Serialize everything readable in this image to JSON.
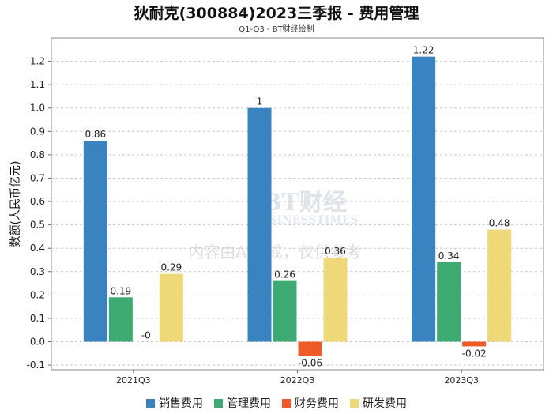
{
  "chart_data": {
    "type": "bar",
    "title": "狄耐克(300884)2023三季报 - 费用管理",
    "subtitle": "Q1-Q3 - BT财经绘制",
    "ylabel": "数额(人民币亿元)",
    "xlabel": "",
    "ylim": [
      -0.12,
      1.3
    ],
    "yticks": [
      -0.1,
      0.0,
      0.1,
      0.2,
      0.3,
      0.4,
      0.5,
      0.6,
      0.7,
      0.8,
      0.9,
      1.0,
      1.1,
      1.2
    ],
    "categories": [
      "2021Q3",
      "2022Q3",
      "2023Q3"
    ],
    "series": [
      {
        "name": "销售费用",
        "color": "#3a83c1",
        "values": [
          0.86,
          1.0,
          1.22
        ],
        "labels": [
          "0.86",
          "1",
          "1.22"
        ]
      },
      {
        "name": "管理费用",
        "color": "#3daa72",
        "values": [
          0.19,
          0.26,
          0.34
        ],
        "labels": [
          "0.19",
          "0.26",
          "0.34"
        ]
      },
      {
        "name": "财务费用",
        "color": "#ee5a28",
        "values": [
          0.0,
          -0.06,
          -0.02
        ],
        "labels": [
          "-0",
          "-0.06",
          "-0.02"
        ]
      },
      {
        "name": "研发费用",
        "color": "#eed878",
        "values": [
          0.29,
          0.36,
          0.48
        ],
        "labels": [
          "0.29",
          "0.36",
          "0.48"
        ]
      }
    ],
    "grid": true,
    "legend": "bottom"
  },
  "watermark": {
    "brand": "BT财经",
    "brand_en": "BUSINESSTIMES",
    "note": "内容由AI生成，仅供参考"
  }
}
